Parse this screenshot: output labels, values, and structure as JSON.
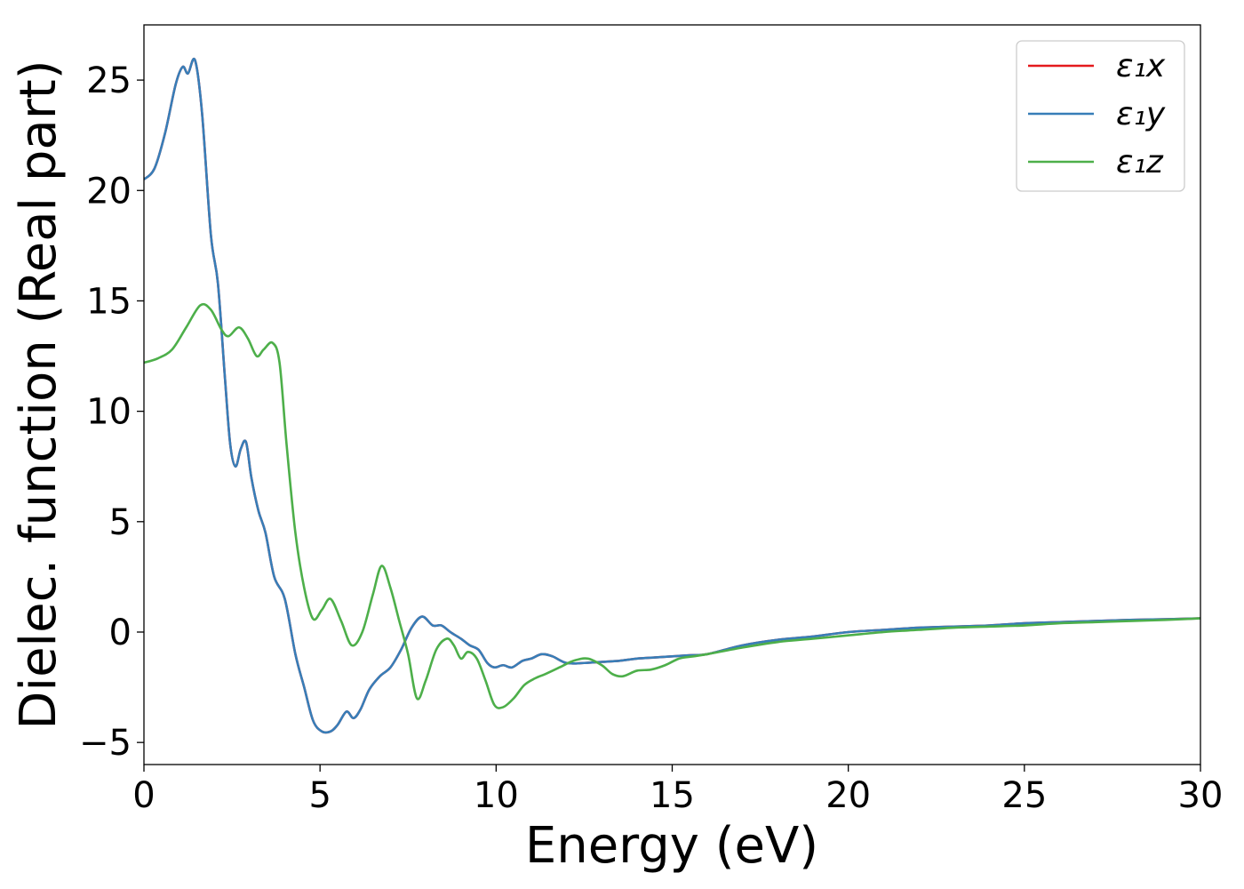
{
  "chart_data": {
    "type": "line",
    "xlabel": "Energy (eV)",
    "ylabel": "Dielec. function (Real part)",
    "xlim": [
      0,
      30
    ],
    "ylim": [
      -6,
      27.5
    ],
    "x_ticks": [
      0,
      5,
      10,
      15,
      20,
      25,
      30
    ],
    "x_tick_labels": [
      "0",
      "5",
      "10",
      "15",
      "20",
      "25",
      "30"
    ],
    "y_ticks": [
      -5,
      0,
      5,
      10,
      15,
      20,
      25
    ],
    "y_tick_labels": [
      "−5",
      "0",
      "5",
      "10",
      "15",
      "20",
      "25"
    ],
    "grid": false,
    "legend_placement": "top-right",
    "series": [
      {
        "name": "ε₁x",
        "color": "#e41a1c",
        "x": [
          0,
          0.3,
          0.6,
          0.9,
          1.1,
          1.25,
          1.45,
          1.65,
          1.9,
          2.1,
          2.3,
          2.45,
          2.6,
          2.75,
          2.9,
          3.05,
          3.25,
          3.45,
          3.7,
          4.0,
          4.3,
          4.55,
          4.8,
          5.05,
          5.3,
          5.5,
          5.75,
          5.95,
          6.15,
          6.4,
          6.7,
          7.0,
          7.3,
          7.6,
          7.9,
          8.2,
          8.45,
          8.7,
          9.0,
          9.25,
          9.5,
          9.75,
          9.95,
          10.2,
          10.45,
          10.75,
          11.0,
          11.3,
          11.6,
          12.0,
          12.5,
          13.0,
          13.5,
          14.0,
          14.5,
          15.0,
          15.5,
          16.0,
          17.0,
          18.0,
          19.0,
          20.0,
          21.0,
          22.0,
          23.0,
          24.0,
          25.0,
          26.0,
          27.0,
          28.0,
          29.0,
          30.0
        ],
        "values": [
          20.5,
          21.0,
          22.6,
          24.8,
          25.6,
          25.3,
          25.9,
          23.5,
          18.0,
          15.8,
          11.5,
          8.5,
          7.5,
          8.3,
          8.6,
          7.0,
          5.5,
          4.5,
          2.5,
          1.5,
          -1.0,
          -2.5,
          -4.0,
          -4.5,
          -4.5,
          -4.2,
          -3.6,
          -3.9,
          -3.5,
          -2.6,
          -2.0,
          -1.6,
          -0.8,
          0.2,
          0.7,
          0.3,
          0.3,
          0.0,
          -0.3,
          -0.6,
          -0.8,
          -1.4,
          -1.6,
          -1.5,
          -1.6,
          -1.3,
          -1.2,
          -1.0,
          -1.1,
          -1.4,
          -1.4,
          -1.35,
          -1.3,
          -1.2,
          -1.15,
          -1.1,
          -1.05,
          -1.0,
          -0.6,
          -0.35,
          -0.2,
          0.0,
          0.1,
          0.2,
          0.25,
          0.3,
          0.4,
          0.45,
          0.5,
          0.55,
          0.58,
          0.62
        ]
      },
      {
        "name": "ε₁y",
        "color": "#377eb8",
        "x": [
          0,
          0.3,
          0.6,
          0.9,
          1.1,
          1.25,
          1.45,
          1.65,
          1.9,
          2.1,
          2.3,
          2.45,
          2.6,
          2.75,
          2.9,
          3.05,
          3.25,
          3.45,
          3.7,
          4.0,
          4.3,
          4.55,
          4.8,
          5.05,
          5.3,
          5.5,
          5.75,
          5.95,
          6.15,
          6.4,
          6.7,
          7.0,
          7.3,
          7.6,
          7.9,
          8.2,
          8.45,
          8.7,
          9.0,
          9.25,
          9.5,
          9.75,
          9.95,
          10.2,
          10.45,
          10.75,
          11.0,
          11.3,
          11.6,
          12.0,
          12.5,
          13.0,
          13.5,
          14.0,
          14.5,
          15.0,
          15.5,
          16.0,
          17.0,
          18.0,
          19.0,
          20.0,
          21.0,
          22.0,
          23.0,
          24.0,
          25.0,
          26.0,
          27.0,
          28.0,
          29.0,
          30.0
        ],
        "values": [
          20.5,
          21.0,
          22.6,
          24.8,
          25.6,
          25.3,
          25.9,
          23.5,
          18.0,
          15.8,
          11.5,
          8.5,
          7.5,
          8.3,
          8.6,
          7.0,
          5.5,
          4.5,
          2.5,
          1.5,
          -1.0,
          -2.5,
          -4.0,
          -4.5,
          -4.5,
          -4.2,
          -3.6,
          -3.9,
          -3.5,
          -2.6,
          -2.0,
          -1.6,
          -0.8,
          0.2,
          0.7,
          0.3,
          0.3,
          0.0,
          -0.3,
          -0.6,
          -0.8,
          -1.4,
          -1.6,
          -1.5,
          -1.6,
          -1.3,
          -1.2,
          -1.0,
          -1.1,
          -1.4,
          -1.4,
          -1.35,
          -1.3,
          -1.2,
          -1.15,
          -1.1,
          -1.05,
          -1.0,
          -0.6,
          -0.35,
          -0.2,
          0.0,
          0.1,
          0.2,
          0.25,
          0.3,
          0.4,
          0.45,
          0.5,
          0.55,
          0.58,
          0.62
        ]
      },
      {
        "name": "ε₁z",
        "color": "#4daf4a",
        "x": [
          0,
          0.4,
          0.8,
          1.2,
          1.6,
          1.9,
          2.2,
          2.4,
          2.7,
          2.95,
          3.2,
          3.4,
          3.65,
          3.85,
          4.05,
          4.3,
          4.55,
          4.8,
          5.05,
          5.3,
          5.6,
          5.9,
          6.2,
          6.5,
          6.75,
          7.0,
          7.25,
          7.5,
          7.75,
          8.0,
          8.3,
          8.6,
          8.8,
          9.0,
          9.2,
          9.45,
          9.7,
          9.95,
          10.2,
          10.5,
          10.8,
          11.1,
          11.4,
          11.8,
          12.2,
          12.6,
          13.0,
          13.3,
          13.6,
          14.0,
          14.4,
          14.8,
          15.2,
          15.6,
          16.0,
          17.0,
          18.0,
          19.0,
          20.0,
          21.0,
          22.0,
          23.0,
          24.0,
          25.0,
          26.0,
          27.0,
          28.0,
          29.0,
          30.0
        ],
        "values": [
          12.2,
          12.4,
          12.8,
          13.8,
          14.8,
          14.6,
          13.7,
          13.4,
          13.8,
          13.3,
          12.5,
          12.8,
          13.1,
          12.2,
          8.5,
          4.5,
          2.0,
          0.6,
          1.0,
          1.5,
          0.5,
          -0.6,
          0.0,
          1.7,
          3.0,
          2.0,
          0.5,
          -1.0,
          -3.0,
          -2.2,
          -0.8,
          -0.3,
          -0.6,
          -1.2,
          -0.9,
          -1.2,
          -2.2,
          -3.3,
          -3.4,
          -3.0,
          -2.4,
          -2.1,
          -1.9,
          -1.6,
          -1.3,
          -1.2,
          -1.5,
          -1.9,
          -2.0,
          -1.75,
          -1.7,
          -1.5,
          -1.2,
          -1.1,
          -1.0,
          -0.7,
          -0.45,
          -0.3,
          -0.15,
          0.0,
          0.1,
          0.2,
          0.25,
          0.3,
          0.4,
          0.45,
          0.5,
          0.55,
          0.62
        ]
      }
    ]
  }
}
